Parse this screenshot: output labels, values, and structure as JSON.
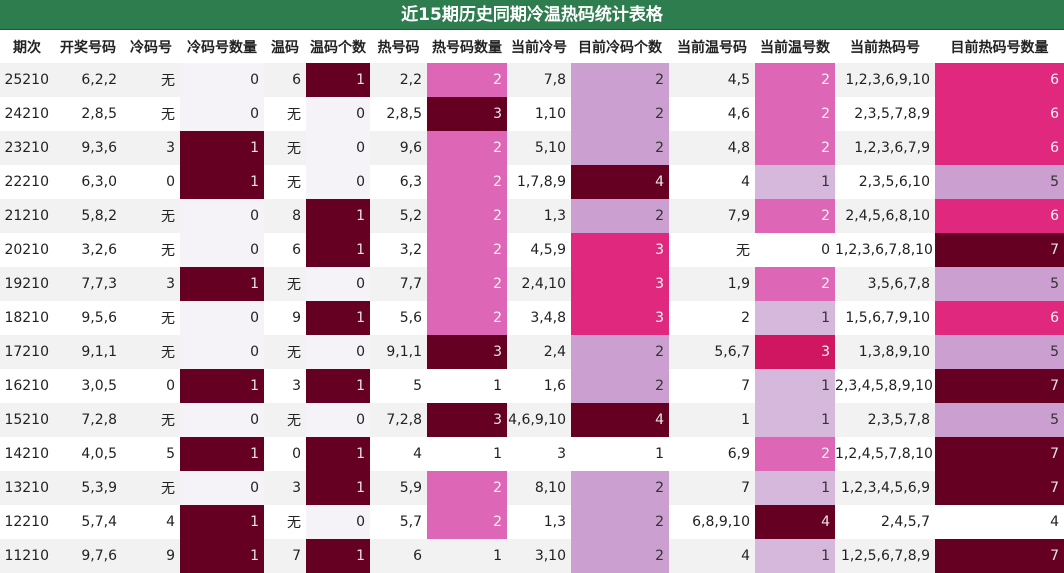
{
  "title": "近15期历史同期冷温热码统计表格",
  "headers": [
    "期次",
    "开奖号码",
    "冷码号",
    "冷码号数量",
    "温码",
    "温码个数",
    "热号码",
    "热号码数量",
    "当前冷号",
    "目前冷码个数",
    "当前温号码",
    "当前温号数",
    "当前热码号",
    "目前热码号数量"
  ],
  "rows": [
    [
      "25210",
      "6,2,2",
      "无",
      "0",
      "6",
      "1",
      "2,2",
      "2",
      "7,8",
      "2",
      "4,5",
      "2",
      "1,2,3,6,9,10",
      "6"
    ],
    [
      "24210",
      "2,8,5",
      "无",
      "0",
      "无",
      "0",
      "2,8,5",
      "3",
      "1,10",
      "2",
      "4,6",
      "2",
      "2,3,5,7,8,9",
      "6"
    ],
    [
      "23210",
      "9,3,6",
      "3",
      "1",
      "无",
      "0",
      "9,6",
      "2",
      "5,10",
      "2",
      "4,8",
      "2",
      "1,2,3,6,7,9",
      "6"
    ],
    [
      "22210",
      "6,3,0",
      "0",
      "1",
      "无",
      "0",
      "6,3",
      "2",
      "1,7,8,9",
      "4",
      "4",
      "1",
      "2,3,5,6,10",
      "5"
    ],
    [
      "21210",
      "5,8,2",
      "无",
      "0",
      "8",
      "1",
      "5,2",
      "2",
      "1,3",
      "2",
      "7,9",
      "2",
      "2,4,5,6,8,10",
      "6"
    ],
    [
      "20210",
      "3,2,6",
      "无",
      "0",
      "6",
      "1",
      "3,2",
      "2",
      "4,5,9",
      "3",
      "无",
      "0",
      "1,2,3,6,7,8,10",
      "7"
    ],
    [
      "19210",
      "7,7,3",
      "3",
      "1",
      "无",
      "0",
      "7,7",
      "2",
      "2,4,10",
      "3",
      "1,9",
      "2",
      "3,5,6,7,8",
      "5"
    ],
    [
      "18210",
      "9,5,6",
      "无",
      "0",
      "9",
      "1",
      "5,6",
      "2",
      "3,4,8",
      "3",
      "2",
      "1",
      "1,5,6,7,9,10",
      "6"
    ],
    [
      "17210",
      "9,1,1",
      "无",
      "0",
      "无",
      "0",
      "9,1,1",
      "3",
      "2,4",
      "2",
      "5,6,7",
      "3",
      "1,3,8,9,10",
      "5"
    ],
    [
      "16210",
      "3,0,5",
      "0",
      "1",
      "3",
      "1",
      "5",
      "1",
      "1,6",
      "2",
      "7",
      "1",
      "2,3,4,5,8,9,10",
      "7"
    ],
    [
      "15210",
      "7,2,8",
      "无",
      "0",
      "无",
      "0",
      "7,2,8",
      "3",
      "4,6,9,10",
      "4",
      "1",
      "1",
      "2,3,5,7,8",
      "5"
    ],
    [
      "14210",
      "4,0,5",
      "5",
      "1",
      "0",
      "1",
      "4",
      "1",
      "3",
      "1",
      "6,9",
      "2",
      "1,2,4,5,7,8,10",
      "7"
    ],
    [
      "13210",
      "5,3,9",
      "无",
      "0",
      "3",
      "1",
      "5,9",
      "2",
      "8,10",
      "2",
      "7",
      "1",
      "1,2,3,4,5,6,9",
      "7"
    ],
    [
      "12210",
      "5,7,4",
      "4",
      "1",
      "无",
      "0",
      "5,7",
      "2",
      "1,3",
      "2",
      "6,8,9,10",
      "4",
      "2,4,5,7",
      "4"
    ],
    [
      "11210",
      "9,7,6",
      "9",
      "1",
      "7",
      "1",
      "6",
      "1",
      "3,10",
      "2",
      "4",
      "1",
      "1,2,5,6,7,8,9",
      "7"
    ]
  ],
  "colors": {
    "title_bg": "#2e7d4f",
    "maroon": "#660022",
    "pink": "#dd66b6",
    "hot": "#e0287f",
    "crimson": "#d01660",
    "lavender": "#cc9fd1",
    "light_lavender": "#d5b8dc"
  }
}
